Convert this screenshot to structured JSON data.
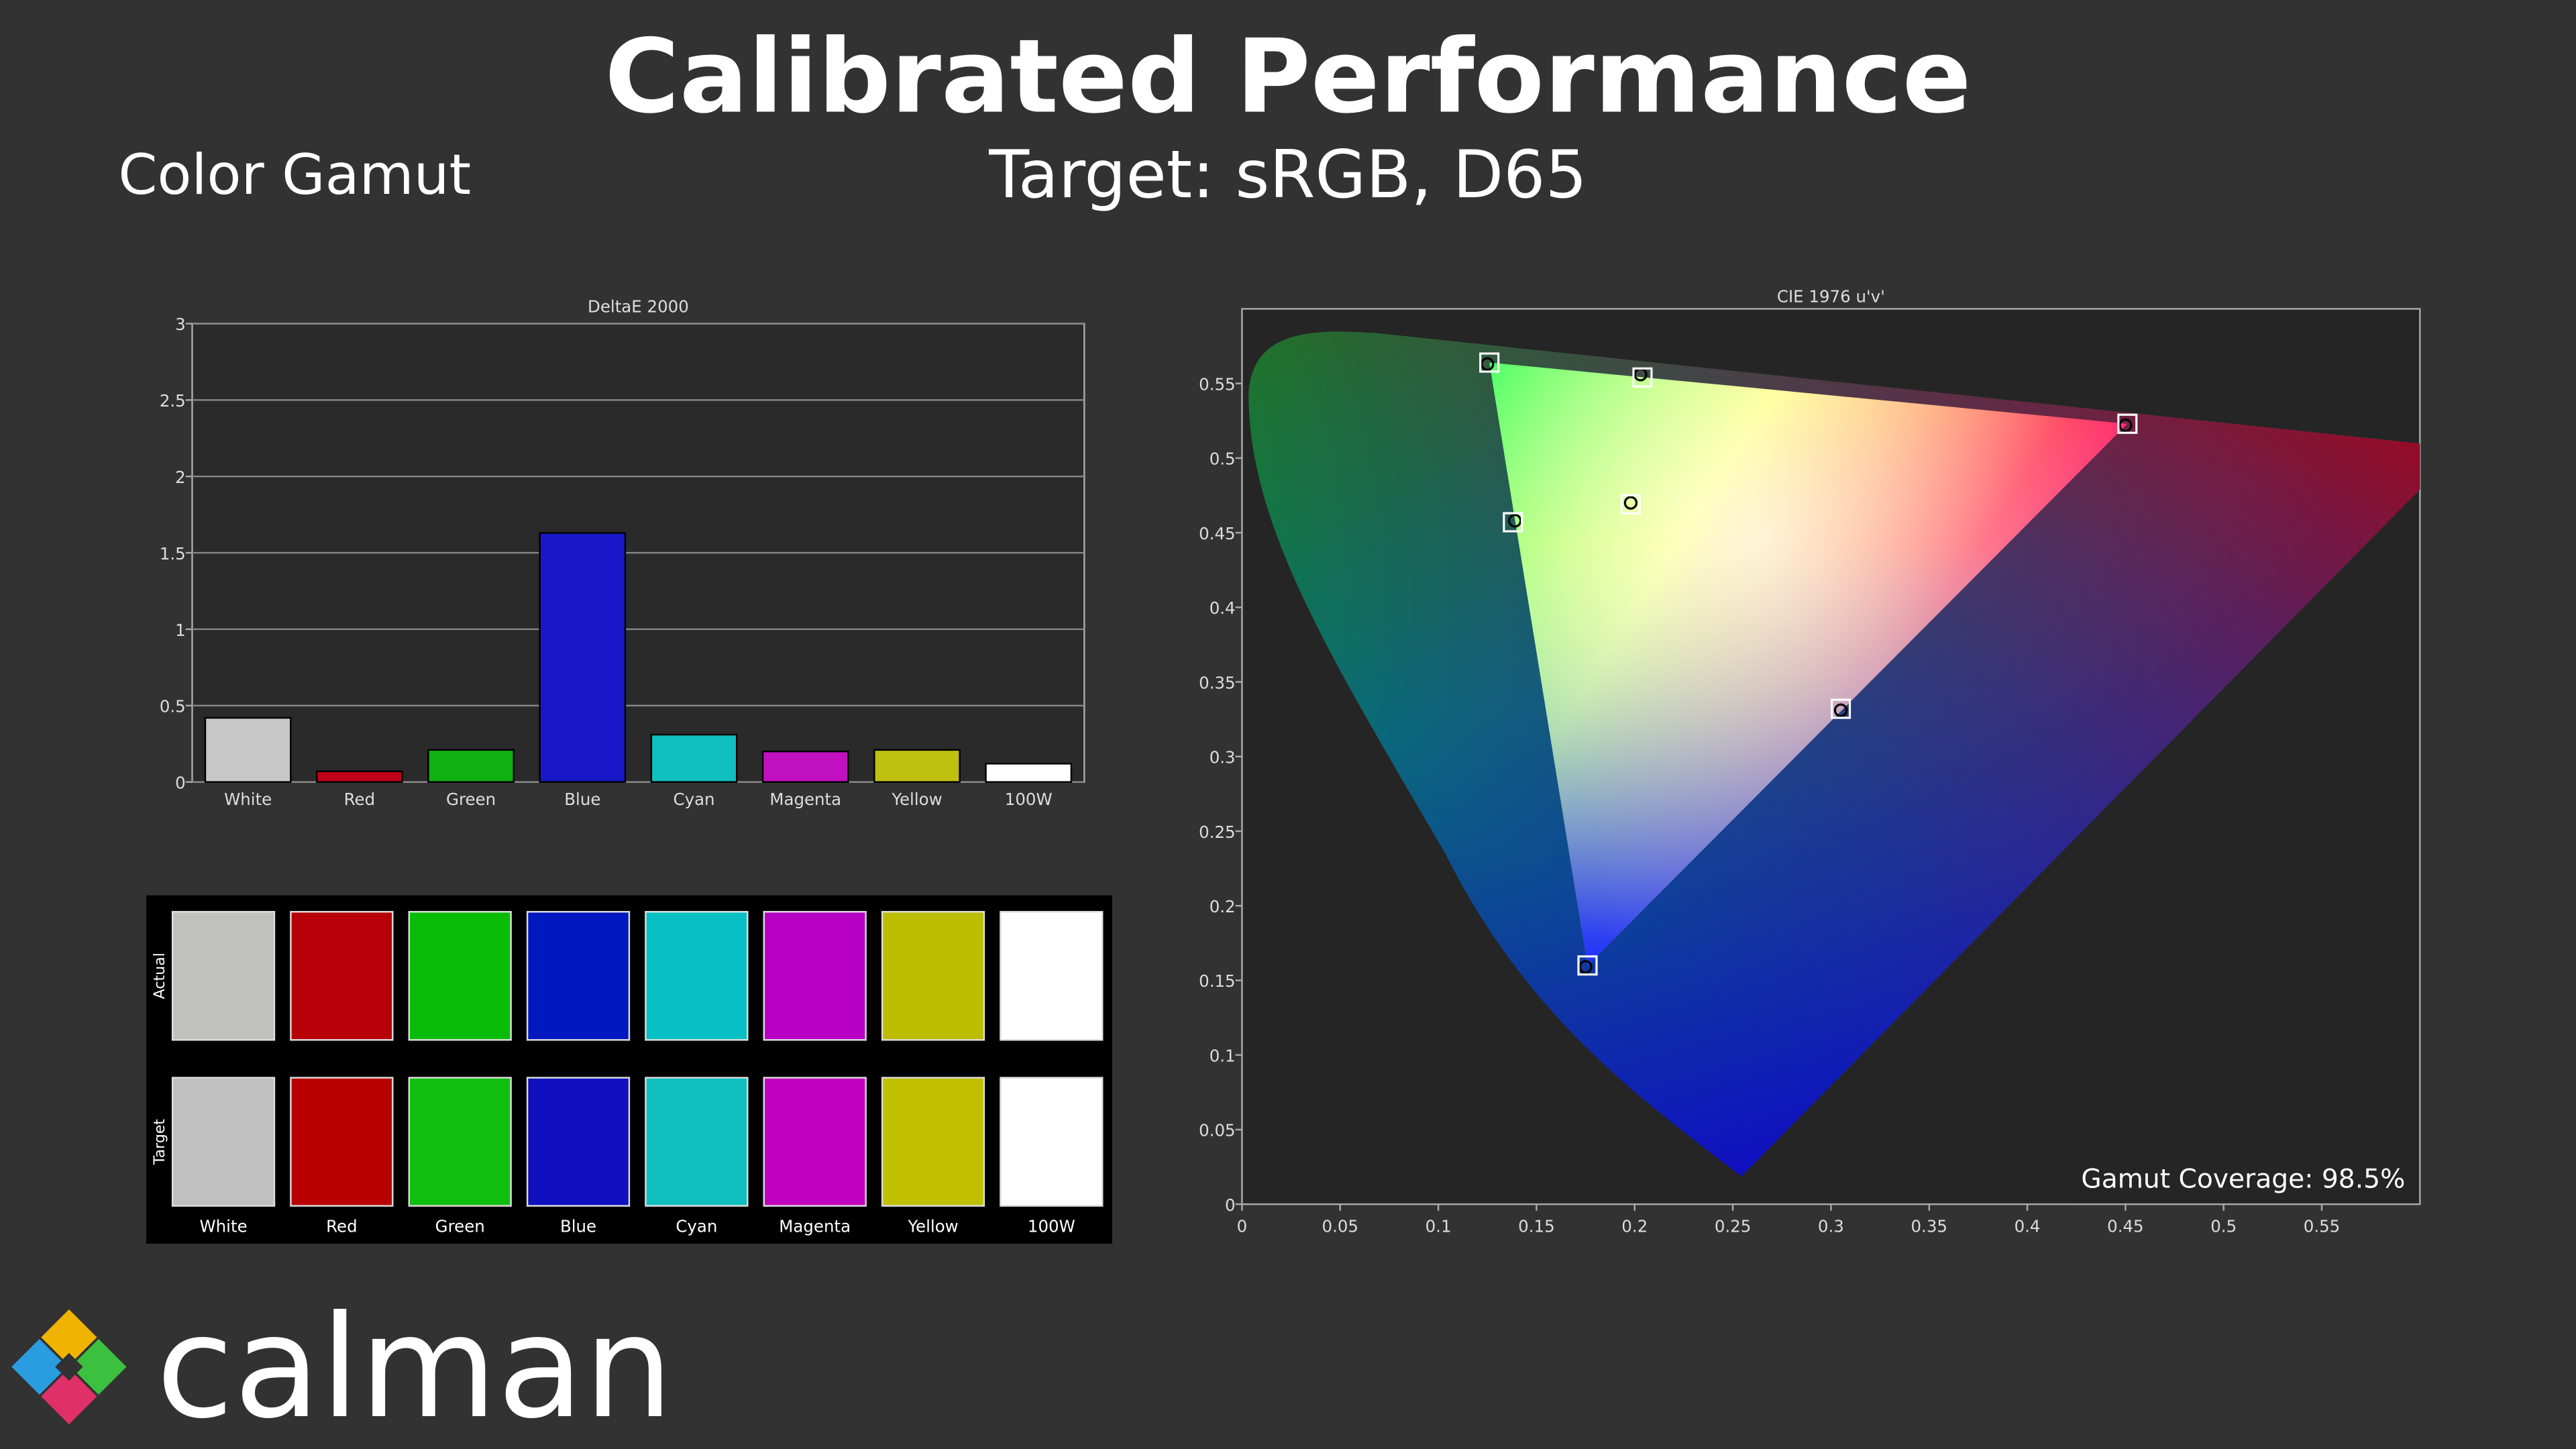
{
  "header": {
    "title": "Calibrated Performance",
    "section": "Color Gamut",
    "subtitle": "Target: sRGB, D65"
  },
  "chart_data": [
    {
      "type": "bar",
      "title": "DeltaE 2000",
      "categories": [
        "White",
        "Red",
        "Green",
        "Blue",
        "Cyan",
        "Magenta",
        "Yellow",
        "100W"
      ],
      "values": [
        0.42,
        0.07,
        0.21,
        1.63,
        0.31,
        0.2,
        0.21,
        0.12
      ],
      "colors": [
        "#c8c8c8",
        "#c00018",
        "#10b010",
        "#1818c8",
        "#10c0c0",
        "#c010c0",
        "#c0c010",
        "#ffffff"
      ],
      "ylim": [
        0,
        3
      ],
      "yticks": [
        0,
        0.5,
        1,
        1.5,
        2,
        2.5,
        3
      ],
      "grid": true
    },
    {
      "type": "scatter",
      "title": "CIE 1976 u'v'",
      "xlim": [
        0,
        0.6
      ],
      "ylim": [
        0,
        0.6
      ],
      "xticks": [
        0,
        0.05,
        0.1,
        0.15,
        0.2,
        0.25,
        0.3,
        0.35,
        0.4,
        0.45,
        0.5,
        0.55
      ],
      "yticks": [
        0,
        0.05,
        0.1,
        0.15,
        0.2,
        0.25,
        0.3,
        0.35,
        0.4,
        0.45,
        0.5,
        0.55
      ],
      "targets": {
        "x": [
          0.198,
          0.451,
          0.126,
          0.176,
          0.138,
          0.305,
          0.204
        ],
        "y": [
          0.469,
          0.523,
          0.564,
          0.16,
          0.457,
          0.332,
          0.554
        ]
      },
      "measured": {
        "x": [
          0.198,
          0.45,
          0.125,
          0.175,
          0.139,
          0.305,
          0.203
        ],
        "y": [
          0.47,
          0.522,
          0.563,
          0.159,
          0.458,
          0.331,
          0.556
        ]
      },
      "annotation": "Gamut Coverage:  98.5%"
    }
  ],
  "swatches": {
    "row_labels": [
      "Actual",
      "Target"
    ],
    "actual": [
      "#c0c0be",
      "#b80008",
      "#08bc08",
      "#0018c0",
      "#08c0c4",
      "#b800c4",
      "#bcbc00",
      "#ffffff"
    ],
    "target": [
      "#c0c0c0",
      "#b80000",
      "#10c010",
      "#1010c0",
      "#10c0c0",
      "#c000c0",
      "#c0c000",
      "#ffffff"
    ]
  },
  "logo": "calman"
}
